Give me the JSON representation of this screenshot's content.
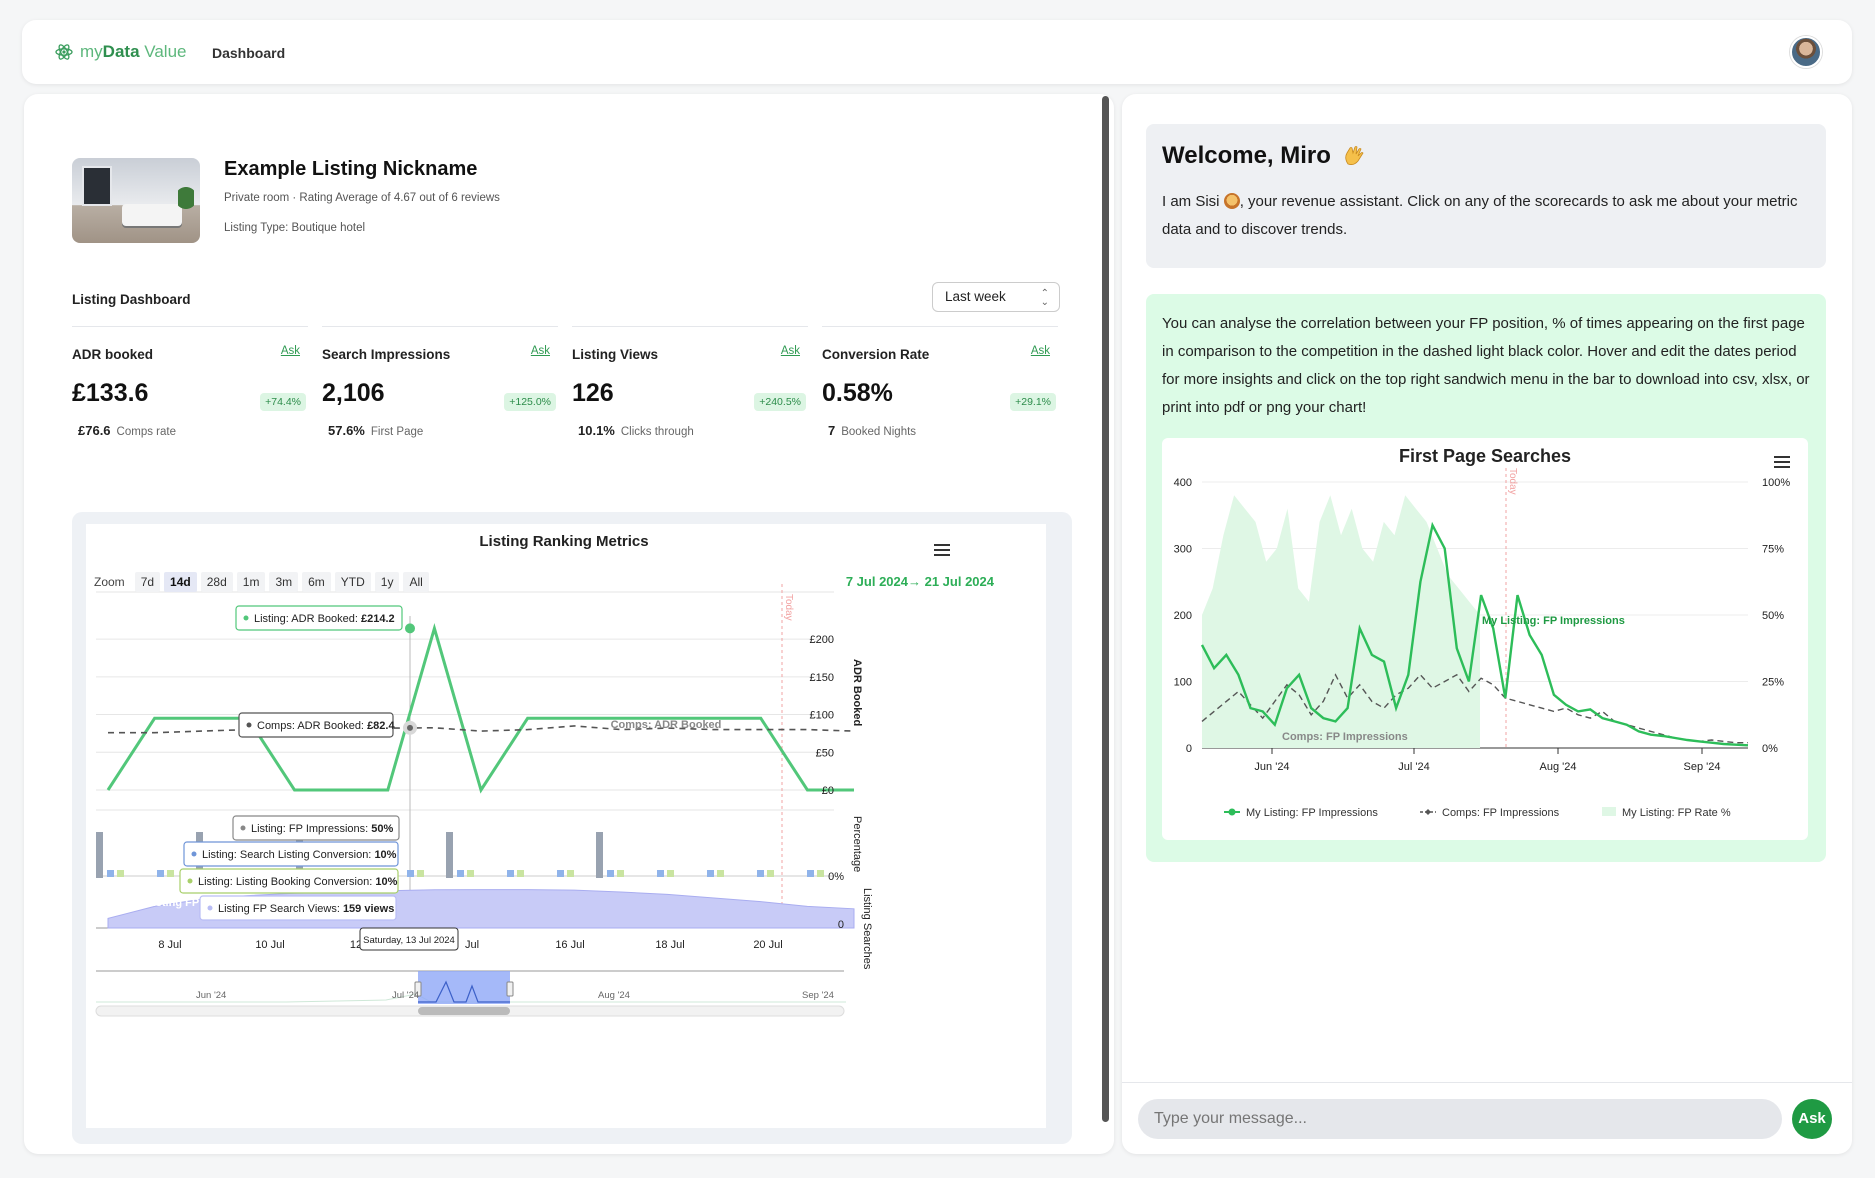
{
  "app": {
    "logo_prefix": "my",
    "logo_bold": "Data",
    "logo_suffix": " Value",
    "nav_dashboard": "Dashboard"
  },
  "listing": {
    "title": "Example Listing Nickname",
    "subtitle": "Private room · Rating Average of 4.67 out of 6 reviews",
    "type": "Listing Type: Boutique hotel"
  },
  "dashboard": {
    "label": "Listing Dashboard",
    "period": "Last week"
  },
  "cards": [
    {
      "name": "ADR booked",
      "ask": "Ask",
      "value": "£133.6",
      "delta": "+74.4%",
      "sub_value": "£76.6",
      "sub_label": "Comps rate"
    },
    {
      "name": "Search Impressions",
      "ask": "Ask",
      "value": "2,106",
      "delta": "+125.0%",
      "sub_value": "57.6%",
      "sub_label": "First Page"
    },
    {
      "name": "Listing Views",
      "ask": "Ask",
      "value": "126",
      "delta": "+240.5%",
      "sub_value": "10.1%",
      "sub_label": "Clicks through"
    },
    {
      "name": "Conversion Rate",
      "ask": "Ask",
      "value": "0.58%",
      "delta": "+29.1%",
      "sub_value": "7",
      "sub_label": "Booked Nights"
    }
  ],
  "ranking_chart": {
    "title": "Listing Ranking Metrics",
    "zoom_label": "Zoom",
    "zoom_buttons": [
      "7d",
      "14d",
      "28d",
      "1m",
      "3m",
      "6m",
      "YTD",
      "1y",
      "All"
    ],
    "zoom_active": "14d",
    "date_from": "7 Jul 2024",
    "arrow": "→",
    "date_to": "21 Jul 2024",
    "today_label": "Today",
    "axis_adr": "ADR Booked",
    "axis_pct": "Percentage",
    "axis_searches": "Listing Searches",
    "adr_ticks": [
      "£200",
      "£150",
      "£100",
      "£50",
      "£0"
    ],
    "pct_tick": "0%",
    "search_tick": "0",
    "x_ticks": [
      "8 Jul",
      "10 Jul",
      "12",
      "Jul",
      "16 Jul",
      "18 Jul",
      "20 Jul"
    ],
    "nav_ticks": [
      "Jun '24",
      "Jul '24",
      "Aug '24",
      "Sep '24"
    ],
    "series_label_comps": "Comps: ADR Booked",
    "series_label_fp": "Listing FP",
    "tooltips": {
      "adr_listing_label": "Listing: ADR Booked: ",
      "adr_listing_value": "£214.2",
      "adr_comps_label": "Comps: ADR Booked: ",
      "adr_comps_value": "£82.4",
      "fp_impr_label": "Listing: FP Impressions: ",
      "fp_impr_value": "50%",
      "search_conv_label": "Listing: Search Listing Conversion: ",
      "search_conv_value": "10%",
      "booking_conv_label": "Listing: Listing Booking Conversion: ",
      "booking_conv_value": "10%",
      "fp_views_label": "Listing FP Search Views: ",
      "fp_views_value": "159 views",
      "date": "Saturday, 13 Jul 2024"
    },
    "chart_data": {
      "type": "line",
      "x": [
        "6 Jul",
        "7 Jul",
        "8 Jul",
        "9 Jul",
        "10 Jul",
        "11 Jul",
        "12 Jul",
        "13 Jul",
        "14 Jul",
        "15 Jul",
        "16 Jul",
        "17 Jul",
        "18 Jul",
        "19 Jul",
        "20 Jul",
        "21 Jul",
        "22 Jul"
      ],
      "series": [
        {
          "name": "Listing: ADR Booked",
          "values": [
            0,
            95,
            95,
            95,
            0,
            0,
            0,
            214.2,
            0,
            95,
            95,
            95,
            95,
            95,
            95,
            0,
            0
          ]
        },
        {
          "name": "Comps: ADR Booked",
          "values": [
            76,
            76,
            78,
            80,
            82,
            80,
            82,
            82.4,
            78,
            80,
            85,
            80,
            82,
            80,
            80,
            80,
            78
          ]
        },
        {
          "name": "Listing FP Search Views",
          "values": [
            40,
            90,
            120,
            135,
            145,
            150,
            155,
            159,
            160,
            160,
            158,
            150,
            140,
            125,
            110,
            90,
            80
          ]
        }
      ],
      "ylim": [
        0,
        220
      ],
      "colors": {
        "listing": "#52c77a",
        "comps": "#555555",
        "views": "#b9bdf5",
        "bar_gray": "#98a2b0",
        "bar_blue": "#8fb3ea",
        "bar_green": "#c9e4a0"
      }
    }
  },
  "chat": {
    "welcome_title": "Welcome, Miro",
    "welcome_text_1": "I am Sisi",
    "welcome_text_2": ", your revenue assistant. Click on any of the scorecards to ask me about your metric data and to discover trends.",
    "info_text": "You can analyse the correlation between your FP position, % of times appearing on the first page in comparison to the competition in the dashed light black color. Hover and edit the dates period for more insights and click on the top right sandwich menu in the bar to download into csv, xlsx, or print into pdf or png your chart!",
    "input_placeholder": "Type your message...",
    "ask_button": "Ask"
  },
  "fp_chart": {
    "title": "First Page Searches",
    "left_ticks": [
      "400",
      "300",
      "200",
      "100",
      "0"
    ],
    "right_ticks": [
      "100%",
      "75%",
      "50%",
      "25%",
      "0%"
    ],
    "x_ticks": [
      "Jun '24",
      "Jul '24",
      "Aug '24",
      "Sep '24"
    ],
    "today_label": "Today",
    "label_my": "My Listing: FP Impressions",
    "label_comps": "Comps: FP Impressions",
    "legend": [
      "My Listing: FP Impressions",
      "Comps: FP Impressions",
      "My Listing: FP Rate %"
    ],
    "chart_data": {
      "type": "line",
      "series": [
        {
          "name": "My Listing: FP Impressions",
          "values": [
            155,
            120,
            140,
            110,
            60,
            55,
            35,
            90,
            110,
            60,
            45,
            40,
            60,
            180,
            140,
            130,
            60,
            110,
            250,
            335,
            300,
            150,
            100,
            230,
            180,
            75,
            230,
            170,
            140,
            80,
            65,
            55,
            58,
            45,
            40,
            35,
            25,
            20,
            18,
            15,
            12,
            10,
            8,
            6,
            5,
            4
          ]
        },
        {
          "name": "Comps: FP Impressions",
          "values": [
            40,
            55,
            70,
            85,
            65,
            45,
            70,
            95,
            80,
            50,
            70,
            110,
            75,
            95,
            70,
            60,
            80,
            90,
            110,
            90,
            100,
            110,
            85,
            105,
            95,
            75,
            70,
            65,
            60,
            55,
            60,
            50,
            45,
            55,
            40,
            35,
            30,
            25,
            20,
            15,
            12,
            10,
            12,
            10,
            8,
            8
          ]
        },
        {
          "name": "My Listing: FP Rate %",
          "values": [
            50,
            60,
            80,
            95,
            90,
            85,
            70,
            75,
            90,
            60,
            55,
            85,
            95,
            80,
            90,
            75,
            70,
            85,
            80,
            95,
            90,
            85,
            75,
            65,
            60,
            55,
            50
          ]
        }
      ],
      "ylim_left": [
        0,
        400
      ],
      "ylim_right": [
        0,
        100
      ],
      "colors": {
        "my": "#2dbd59",
        "comps": "#555555",
        "rate": "#dff7e5"
      }
    }
  }
}
